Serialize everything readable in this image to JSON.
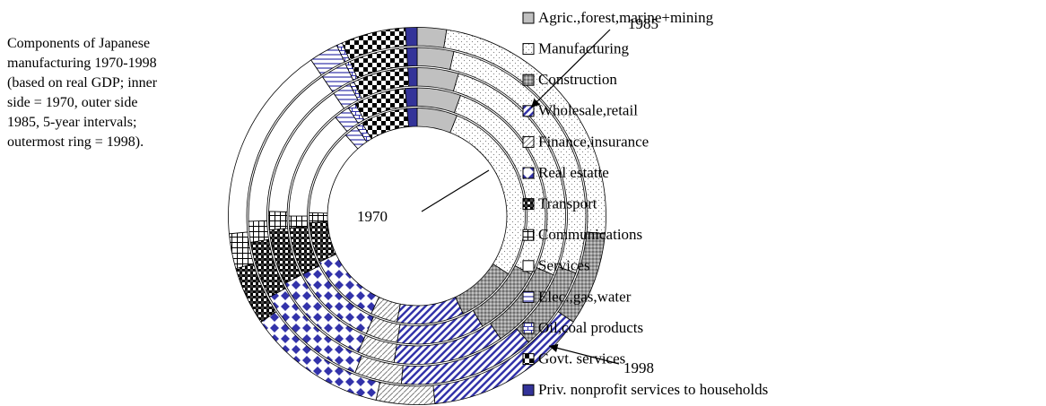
{
  "chart_data": {
    "type": "donut",
    "title": "Components of Japanese manufacturing 1970-1998 (based on real GDP; inner side = 1970, outer side 1985, 5-year intervals; outermost ring = 1998).",
    "annotations": [
      "1970",
      "1985",
      "1998"
    ],
    "series": [
      {
        "name": "Agric.,forest,marine+mining",
        "color": "#c0c0c0",
        "pattern": "solid",
        "values": [
          6,
          5.5,
          4.5,
          3.5,
          2.5
        ]
      },
      {
        "name": "Manufacturing",
        "color": "#808080",
        "pattern": "dots",
        "values": [
          28,
          27,
          27,
          27,
          24
        ]
      },
      {
        "name": "Construction",
        "color": "#808080",
        "pattern": "dense-dots",
        "values": [
          9,
          9,
          9,
          8,
          8
        ]
      },
      {
        "name": "Wholesale,retail",
        "color": "#3333aa",
        "pattern": "diagonal",
        "values": [
          10,
          11,
          12,
          13,
          14
        ]
      },
      {
        "name": "Finance,insurance",
        "color": "#808080",
        "pattern": "hatch",
        "values": [
          4,
          4,
          4,
          4.5,
          5
        ]
      },
      {
        "name": "Real estatte",
        "color": "#3333aa",
        "pattern": "diamonds",
        "values": [
          11,
          11,
          11,
          11,
          12
        ]
      },
      {
        "name": "Transport",
        "color": "#000000",
        "pattern": "checker",
        "values": [
          6,
          6,
          6,
          5.5,
          5
        ]
      },
      {
        "name": "Communications",
        "color": "#000000",
        "pattern": "grid",
        "values": [
          1.5,
          1.5,
          2,
          2,
          3
        ]
      },
      {
        "name": "Services",
        "color": "#ffffff",
        "pattern": "solid",
        "values": [
          13,
          14,
          15,
          16,
          17
        ]
      },
      {
        "name": "Elec.,gas,water",
        "color": "#3333aa",
        "pattern": "horizontal",
        "values": [
          2,
          2,
          2,
          2.5,
          2.5
        ]
      },
      {
        "name": "Oil,coal products",
        "color": "#3333aa",
        "pattern": "brick",
        "values": [
          1,
          1,
          0.5,
          0.5,
          0.5
        ]
      },
      {
        "name": "Govt. services",
        "color": "#000000",
        "pattern": "big-checker",
        "values": [
          7,
          6.5,
          6,
          5.5,
          5.5
        ]
      },
      {
        "name": "Priv. nonprofit services to households",
        "color": "#333399",
        "pattern": "solid",
        "values": [
          1.5,
          1.5,
          1,
          1,
          1
        ]
      }
    ]
  }
}
